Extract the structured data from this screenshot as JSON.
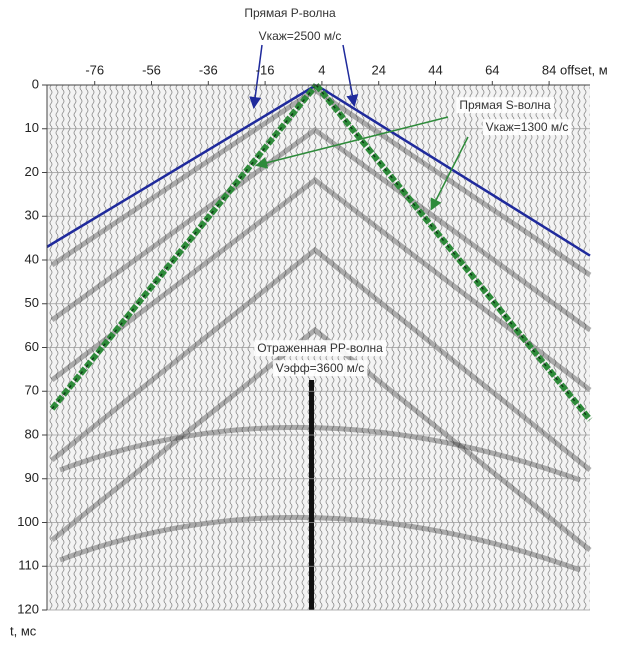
{
  "chart_data": {
    "type": "line",
    "x_label": "offset, м",
    "y_label": "t, мс",
    "xlim": [
      -92.8,
      98.4
    ],
    "ylim": [
      0,
      120
    ],
    "y_direction": "down",
    "xticks": [
      -76,
      -56,
      -36,
      -16,
      4,
      24,
      44,
      64,
      84
    ],
    "yticks": [
      0,
      10,
      20,
      30,
      40,
      50,
      60,
      70,
      80,
      90,
      100,
      110,
      120
    ],
    "grid": true,
    "series": [
      {
        "color": "#1f2a9c",
        "x": [
          -92.8,
          2
        ],
        "values": [
          37,
          0
        ]
      },
      {
        "color": "#1f2a9c",
        "x": [
          2,
          98.4
        ],
        "values": [
          0,
          39
        ]
      },
      {
        "color": "#2e8b3a",
        "x": [
          -91,
          2
        ],
        "values": [
          74,
          0
        ]
      },
      {
        "color": "#2e8b3a",
        "x": [
          2,
          98.4
        ],
        "values": [
          0,
          76.5
        ]
      }
    ],
    "annotations": [
      "Прямая P-волна",
      "Vкаж=2500 м/с",
      "Прямая S-волна",
      "Vкаж=1300 м/с",
      "Отраженная PP-волна",
      "Vэфф=3600 м/с"
    ]
  }
}
